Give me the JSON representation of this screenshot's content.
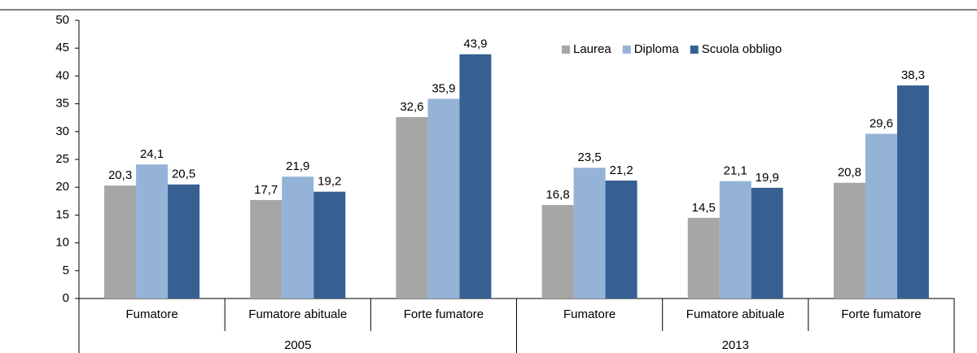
{
  "chart_data": {
    "type": "bar",
    "groups": [
      {
        "name": "2005",
        "categories": [
          "Fumatore",
          "Fumatore abituale",
          "Forte fumatore"
        ]
      },
      {
        "name": "2013",
        "categories": [
          "Fumatore",
          "Fumatore abituale",
          "Forte fumatore"
        ]
      }
    ],
    "series": [
      {
        "name": "Laurea",
        "color": "#a6a6a6",
        "values": [
          20.3,
          17.7,
          32.6,
          16.8,
          14.5,
          20.8
        ],
        "value_labels": [
          "20,3",
          "17,7",
          "32,6",
          "16,8",
          "14,5",
          "20,8"
        ]
      },
      {
        "name": "Diploma",
        "color": "#95b3d7",
        "values": [
          24.1,
          21.9,
          35.9,
          23.5,
          21.1,
          29.6
        ],
        "value_labels": [
          "24,1",
          "21,9",
          "35,9",
          "23,5",
          "21,1",
          "29,6"
        ]
      },
      {
        "name": "Scuola obbligo",
        "color": "#366092",
        "values": [
          20.5,
          19.2,
          43.9,
          21.2,
          19.9,
          38.3
        ],
        "value_labels": [
          "20,5",
          "19,2",
          "43,9",
          "21,2",
          "19,9",
          "38,3"
        ]
      }
    ],
    "ylim": [
      0,
      50
    ],
    "yticks": [
      0,
      5,
      10,
      15,
      20,
      25,
      30,
      35,
      40,
      45,
      50
    ],
    "legend": "top-right",
    "grid": false
  }
}
